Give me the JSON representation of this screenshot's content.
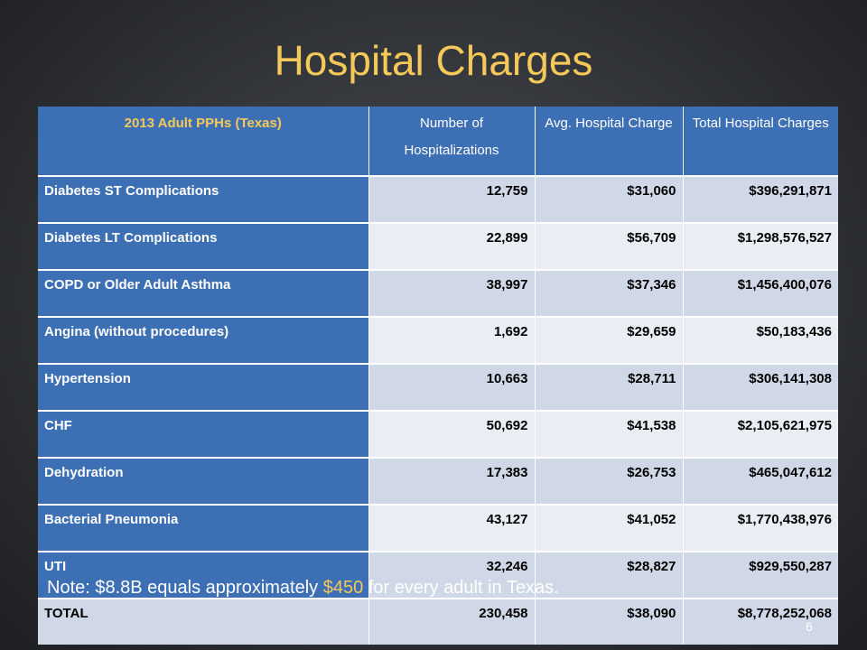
{
  "slide": {
    "title": "Hospital Charges",
    "page_number": "6"
  },
  "table": {
    "headers": [
      "2013 Adult PPHs (Texas)",
      "Number of Hospitalizations",
      "Avg. Hospital Charge",
      "Total Hospital Charges"
    ],
    "rows": [
      {
        "condition": "Diabetes ST Complications",
        "hospitalizations": "12,759",
        "avg_charge": "$31,060",
        "total_charges": "$396,291,871"
      },
      {
        "condition": "Diabetes LT Complications",
        "hospitalizations": "22,899",
        "avg_charge": "$56,709",
        "total_charges": "$1,298,576,527"
      },
      {
        "condition": "COPD or Older Adult Asthma",
        "hospitalizations": "38,997",
        "avg_charge": "$37,346",
        "total_charges": "$1,456,400,076"
      },
      {
        "condition": "Angina (without procedures)",
        "hospitalizations": "1,692",
        "avg_charge": "$29,659",
        "total_charges": "$50,183,436"
      },
      {
        "condition": "Hypertension",
        "hospitalizations": "10,663",
        "avg_charge": "$28,711",
        "total_charges": "$306,141,308"
      },
      {
        "condition": "CHF",
        "hospitalizations": "50,692",
        "avg_charge": "$41,538",
        "total_charges": "$2,105,621,975"
      },
      {
        "condition": "Dehydration",
        "hospitalizations": "17,383",
        "avg_charge": "$26,753",
        "total_charges": "$465,047,612"
      },
      {
        "condition": "Bacterial Pneumonia",
        "hospitalizations": "43,127",
        "avg_charge": "$41,052",
        "total_charges": "$1,770,438,976"
      },
      {
        "condition": "UTI",
        "hospitalizations": "32,246",
        "avg_charge": "$28,827",
        "total_charges": "$929,550,287"
      },
      {
        "condition": "TOTAL",
        "hospitalizations": "230,458",
        "avg_charge": "$38,090",
        "total_charges": "$8,778,252,068"
      }
    ]
  },
  "note": {
    "prefix": "Note: $8.8B equals approximately ",
    "highlight": "$450",
    "suffix": " for every adult in Texas."
  },
  "colors": {
    "title": "#f5c85a",
    "header_blue": "#3d6fb5",
    "cell_light": "#d0d8e8",
    "cell_lighter": "#e9edf4"
  }
}
